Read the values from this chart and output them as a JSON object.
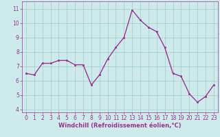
{
  "x": [
    0,
    1,
    2,
    3,
    4,
    5,
    6,
    7,
    8,
    9,
    10,
    11,
    12,
    13,
    14,
    15,
    16,
    17,
    18,
    19,
    20,
    21,
    22,
    23
  ],
  "y": [
    6.5,
    6.4,
    7.2,
    7.2,
    7.4,
    7.4,
    7.1,
    7.1,
    5.7,
    6.4,
    7.5,
    8.3,
    9.0,
    10.9,
    10.2,
    9.7,
    9.4,
    8.3,
    6.5,
    6.3,
    5.1,
    4.5,
    4.9,
    5.7
  ],
  "line_color": "#993399",
  "marker": "s",
  "markersize": 2,
  "linewidth": 1.0,
  "bg_color": "#ceeaea",
  "grid_color": "#a0cccc",
  "xlabel": "Windchill (Refroidissement éolien,°C)",
  "xlabel_color": "#993399",
  "xlabel_fontsize": 6.0,
  "tick_color": "#993399",
  "tick_fontsize": 5.5,
  "ylim": [
    3.8,
    11.5
  ],
  "yticks": [
    4,
    5,
    6,
    7,
    8,
    9,
    10,
    11
  ],
  "xticks": [
    0,
    1,
    2,
    3,
    4,
    5,
    6,
    7,
    8,
    9,
    10,
    11,
    12,
    13,
    14,
    15,
    16,
    17,
    18,
    19,
    20,
    21,
    22,
    23
  ],
  "xlim": [
    -0.5,
    23.5
  ]
}
